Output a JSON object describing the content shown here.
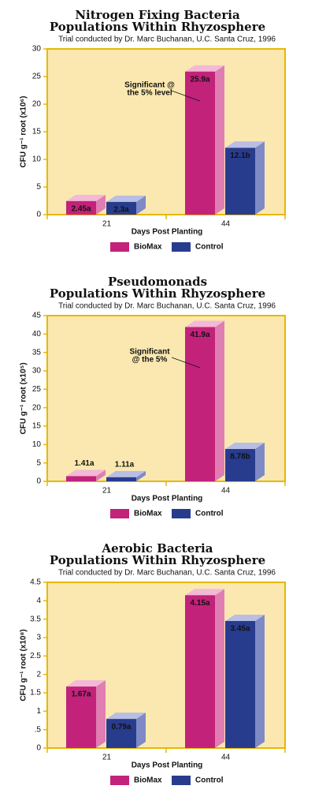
{
  "chart_data": [
    {
      "type": "bar",
      "title": [
        "Nitrogen Fixing Bacteria",
        "Populations Within Rhyzosphere"
      ],
      "subtitle": "Trial conducted by Dr. Marc Buchanan, U.C. Santa Cruz, 1996",
      "y_label": "CFU g⁻¹ root (x10⁶)",
      "x_label": "Days Post Planting",
      "categories": [
        "21",
        "44"
      ],
      "series": [
        {
          "name": "BioMax",
          "color": "#c2227a",
          "values": [
            2.45,
            25.9
          ],
          "value_labels": [
            "2.45a",
            "25.9a"
          ]
        },
        {
          "name": "Control",
          "color": "#283c8e",
          "values": [
            2.3,
            12.1
          ],
          "value_labels": [
            "2.3a",
            "12.1b"
          ]
        }
      ],
      "ylim": [
        0,
        30
      ],
      "yticks": [
        0,
        5,
        10,
        15,
        20,
        25,
        30
      ],
      "annotation": [
        "Significant @",
        "the 5% level"
      ]
    },
    {
      "type": "bar",
      "title": [
        "Pseudomonads",
        "Populations Within Rhyzosphere"
      ],
      "subtitle": "Trial conducted by Dr. Marc Buchanan, U.C. Santa Cruz, 1996",
      "y_label": "CFU g⁻¹ root (x10⁵)",
      "x_label": "Days Post Planting",
      "categories": [
        "21",
        "44"
      ],
      "series": [
        {
          "name": "BioMax",
          "color": "#c2227a",
          "values": [
            1.41,
            41.9
          ],
          "value_labels": [
            "1.41a",
            "41.9a"
          ]
        },
        {
          "name": "Control",
          "color": "#283c8e",
          "values": [
            1.11,
            8.78
          ],
          "value_labels": [
            "1.11a",
            "8.78b"
          ]
        }
      ],
      "ylim": [
        0,
        45
      ],
      "yticks": [
        0,
        5,
        10,
        15,
        20,
        25,
        30,
        35,
        40,
        45
      ],
      "annotation": [
        "Significant",
        "@ the 5%"
      ]
    },
    {
      "type": "bar",
      "title": [
        "Aerobic Bacteria",
        "Populations Within Rhyzosphere"
      ],
      "subtitle": "Trial conducted by Dr. Marc Buchanan, U.C. Santa Cruz, 1996",
      "y_label": "CFU g⁻¹ root (x10⁸)",
      "x_label": "Days Post Planting",
      "categories": [
        "21",
        "44"
      ],
      "series": [
        {
          "name": "BioMax",
          "color": "#c2227a",
          "values": [
            1.67,
            4.15
          ],
          "value_labels": [
            "1.67a",
            "4.15a"
          ]
        },
        {
          "name": "Control",
          "color": "#283c8e",
          "values": [
            0.79,
            3.45
          ],
          "value_labels": [
            "0.79a",
            "3.45a"
          ]
        }
      ],
      "ylim": [
        0,
        4.5
      ],
      "yticks": [
        0,
        {
          "value": 0.5,
          "label": ".5"
        },
        1,
        1.5,
        2,
        2.5,
        3,
        3.5,
        4,
        4.5
      ]
    }
  ]
}
